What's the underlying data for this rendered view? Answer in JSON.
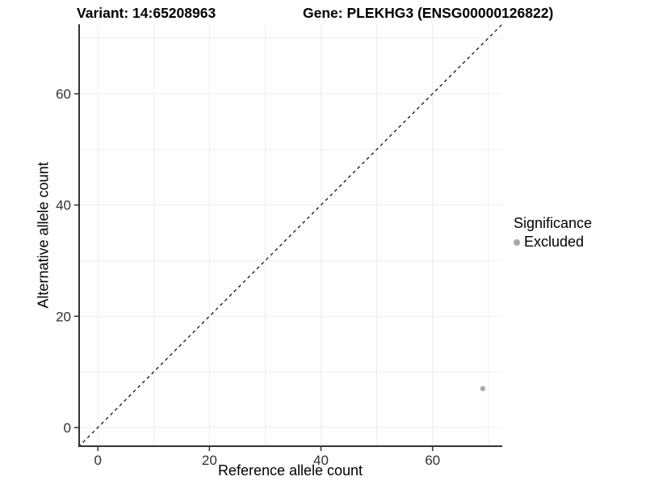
{
  "chart_data": {
    "type": "scatter",
    "title_left": "Variant: 14:65208963",
    "title_right": "Gene: PLEKHG3 (ENSG00000126822)",
    "xlabel": "Reference allele count",
    "ylabel": "Alternative allele count",
    "xlim": [
      -3.5,
      72.5
    ],
    "ylim": [
      -3.5,
      72.5
    ],
    "xticks": [
      0,
      20,
      40,
      60
    ],
    "yticks": [
      0,
      20,
      40,
      60
    ],
    "grid": {
      "from": 0,
      "to": 70,
      "step": 10,
      "color": "#ededed"
    },
    "axis": {
      "line_color": "#333333",
      "tick_color": "#333333",
      "text_color": "#303030"
    },
    "identity_line": {
      "from": -3.5,
      "to": 72.5,
      "style": "dashed",
      "color": "#000000"
    },
    "points": [
      {
        "x": 69,
        "y": 7,
        "significance": "Excluded",
        "color": "#a8a8a8"
      }
    ],
    "legend": {
      "title": "Significance",
      "position": "right",
      "items": [
        {
          "label": "Excluded",
          "color": "#a8a8a8"
        }
      ]
    }
  }
}
